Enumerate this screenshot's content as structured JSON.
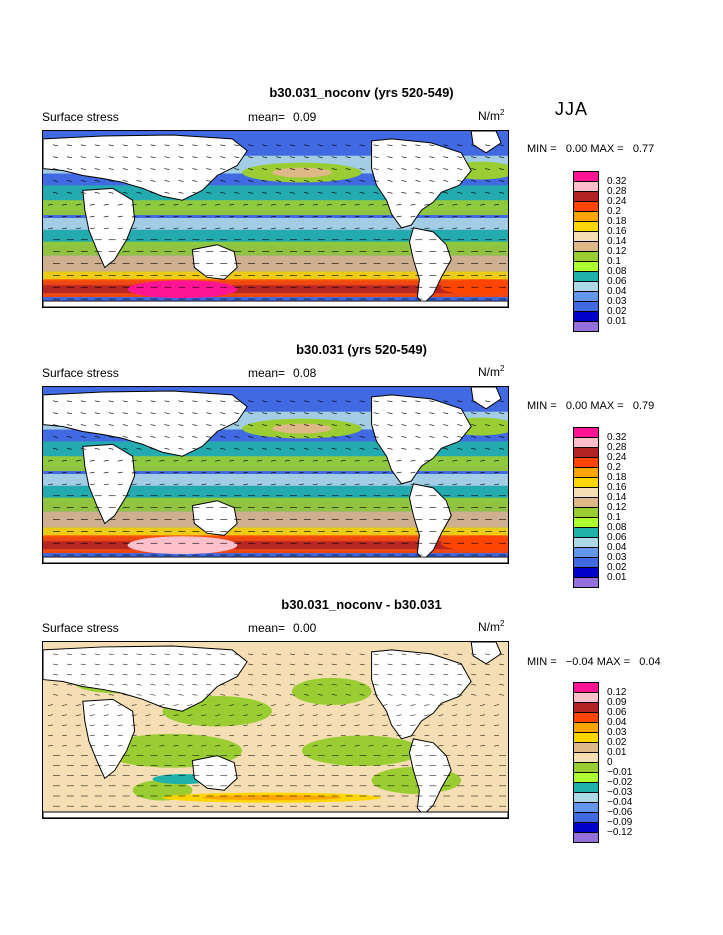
{
  "season": "JJA",
  "panels": [
    {
      "title": "b30.031_noconv (yrs 520-549)",
      "variable": "Surface stress",
      "mean_label": "mean=",
      "mean": "0.09",
      "units": "N/m",
      "units_exp": "2",
      "min_label": "MIN =",
      "min": "0.00",
      "max_label": "MAX =",
      "max": "0.77",
      "legend": [
        "0.32",
        "0.28",
        "0.24",
        "0.2",
        "0.18",
        "0.16",
        "0.14",
        "0.12",
        "0.1",
        "0.08",
        "0.06",
        "0.04",
        "0.03",
        "0.02",
        "0.01"
      ]
    },
    {
      "title": "b30.031 (yrs 520-549)",
      "variable": "Surface stress",
      "mean_label": "mean=",
      "mean": "0.08",
      "units": "N/m",
      "units_exp": "2",
      "min_label": "MIN =",
      "min": "0.00",
      "max_label": "MAX =",
      "max": "0.79",
      "legend": [
        "0.32",
        "0.28",
        "0.24",
        "0.2",
        "0.18",
        "0.16",
        "0.14",
        "0.12",
        "0.1",
        "0.08",
        "0.06",
        "0.04",
        "0.03",
        "0.02",
        "0.01"
      ]
    },
    {
      "title": "b30.031_noconv - b30.031",
      "variable": "Surface stress",
      "mean_label": "mean=",
      "mean": "0.00",
      "units": "N/m",
      "units_exp": "2",
      "min_label": "MIN =",
      "min": "−0.04",
      "max_label": "MAX =",
      "max": "0.04",
      "legend": [
        "0.12",
        "0.09",
        "0.06",
        "0.04",
        "0.03",
        "0.02",
        "0.01",
        "0",
        "−0.01",
        "−0.02",
        "−0.03",
        "−0.04",
        "−0.06",
        "−0.09",
        "−0.12"
      ]
    }
  ],
  "colors": {
    "abs_scale": [
      "#ff1493",
      "#ffb6c1",
      "#b22222",
      "#ff4500",
      "#ffa500",
      "#ffd700",
      "#ffff00",
      "#deb887",
      "#f5deb3",
      "#9acd32",
      "#adff2f",
      "#20b2aa",
      "#add8e6",
      "#6495ed",
      "#4169e1",
      "#0000cd",
      "#9370db"
    ],
    "diff_scale": [
      "#ff1493",
      "#ffb6c1",
      "#b22222",
      "#ff4500",
      "#ffa500",
      "#ffd700",
      "#deb887",
      "#f5deb3",
      "#ffffff",
      "#9acd32",
      "#adff2f",
      "#20b2aa",
      "#add8e6",
      "#6495ed",
      "#0000cd",
      "#9370db"
    ]
  }
}
